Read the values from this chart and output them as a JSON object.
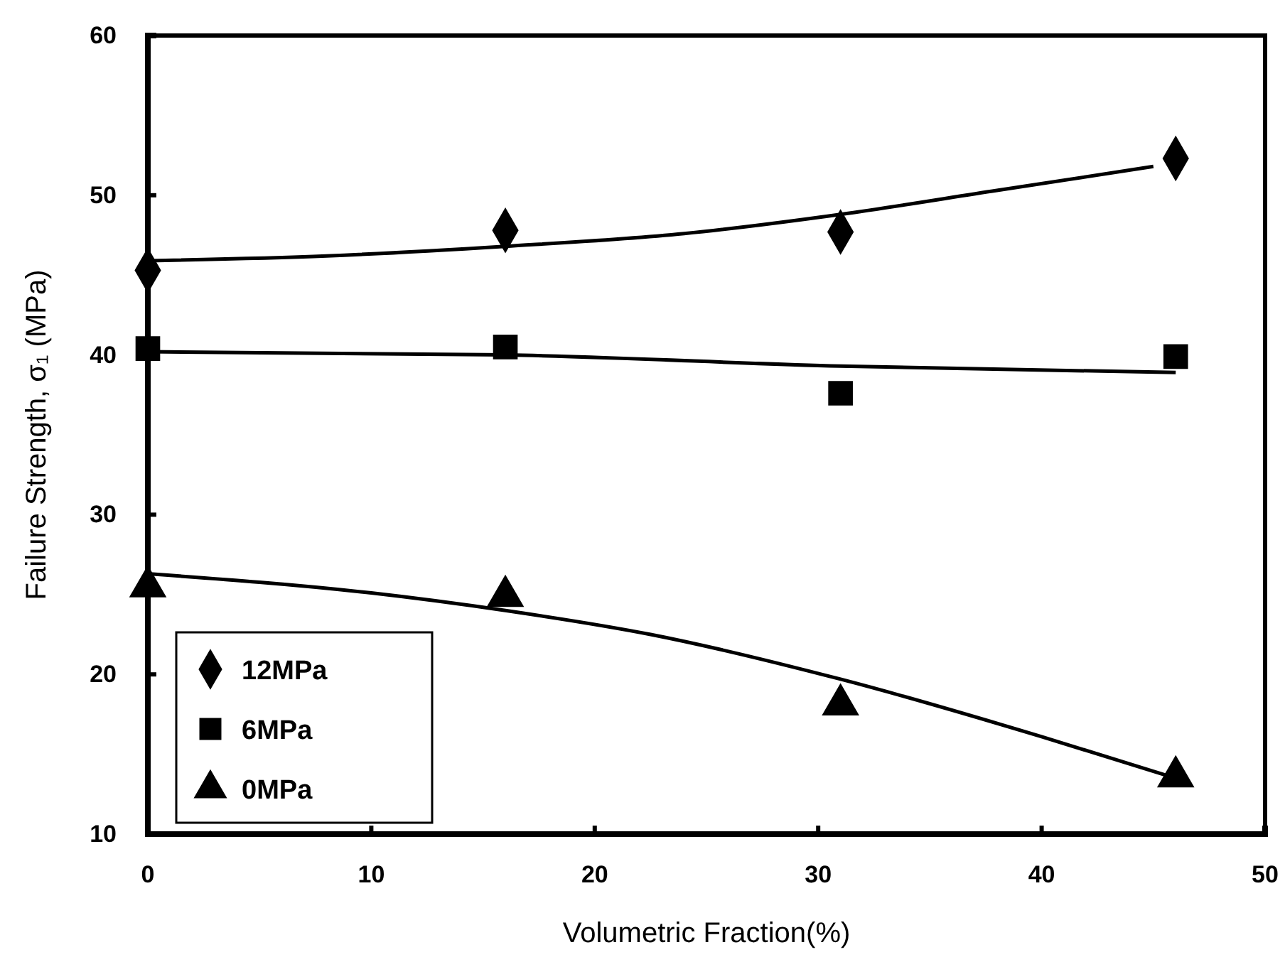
{
  "chart_data": {
    "type": "scatter",
    "xlabel": "Volumetric Fraction(%)",
    "ylabel": "Failure Strength, σ₁ (MPa)",
    "xlim": [
      0,
      50
    ],
    "xticks": [
      0,
      10,
      20,
      30,
      40,
      50
    ],
    "ylim": [
      10,
      60
    ],
    "yticks": [
      10,
      20,
      30,
      40,
      50,
      60
    ],
    "grid": false,
    "legend": "bottom left",
    "line_style": "solid",
    "series": [
      {
        "name": "12MPa",
        "color": "#000000",
        "marker": "diamond",
        "x": [
          0,
          16,
          31,
          46
        ],
        "values": [
          45.3,
          47.8,
          47.7,
          52.3
        ]
      },
      {
        "name": "6MPa",
        "color": "#000000",
        "marker": "square",
        "x": [
          0,
          16,
          31,
          46
        ],
        "values": [
          40.4,
          40.5,
          37.6,
          39.9
        ]
      },
      {
        "name": "0MPa",
        "color": "#000000",
        "marker": "triangle",
        "x": [
          0,
          16,
          31,
          46
        ],
        "values": [
          25.5,
          24.9,
          18.1,
          13.6
        ]
      },
      {
        "type": "line",
        "color": "#000000",
        "marker": "none",
        "x": [
          0,
          8,
          16,
          24,
          31,
          38,
          45
        ],
        "values": [
          45.9,
          46.2,
          46.8,
          47.6,
          48.8,
          50.3,
          51.8
        ]
      },
      {
        "type": "line",
        "color": "#000000",
        "marker": "none",
        "x": [
          0,
          16,
          31,
          46
        ],
        "values": [
          40.2,
          40.0,
          39.3,
          38.9
        ]
      },
      {
        "type": "line",
        "color": "#000000",
        "marker": "none",
        "x": [
          0,
          10,
          16,
          22.5,
          31,
          40,
          46
        ],
        "values": [
          26.3,
          25.1,
          24.0,
          22.5,
          19.7,
          16.1,
          13.5
        ]
      }
    ]
  }
}
